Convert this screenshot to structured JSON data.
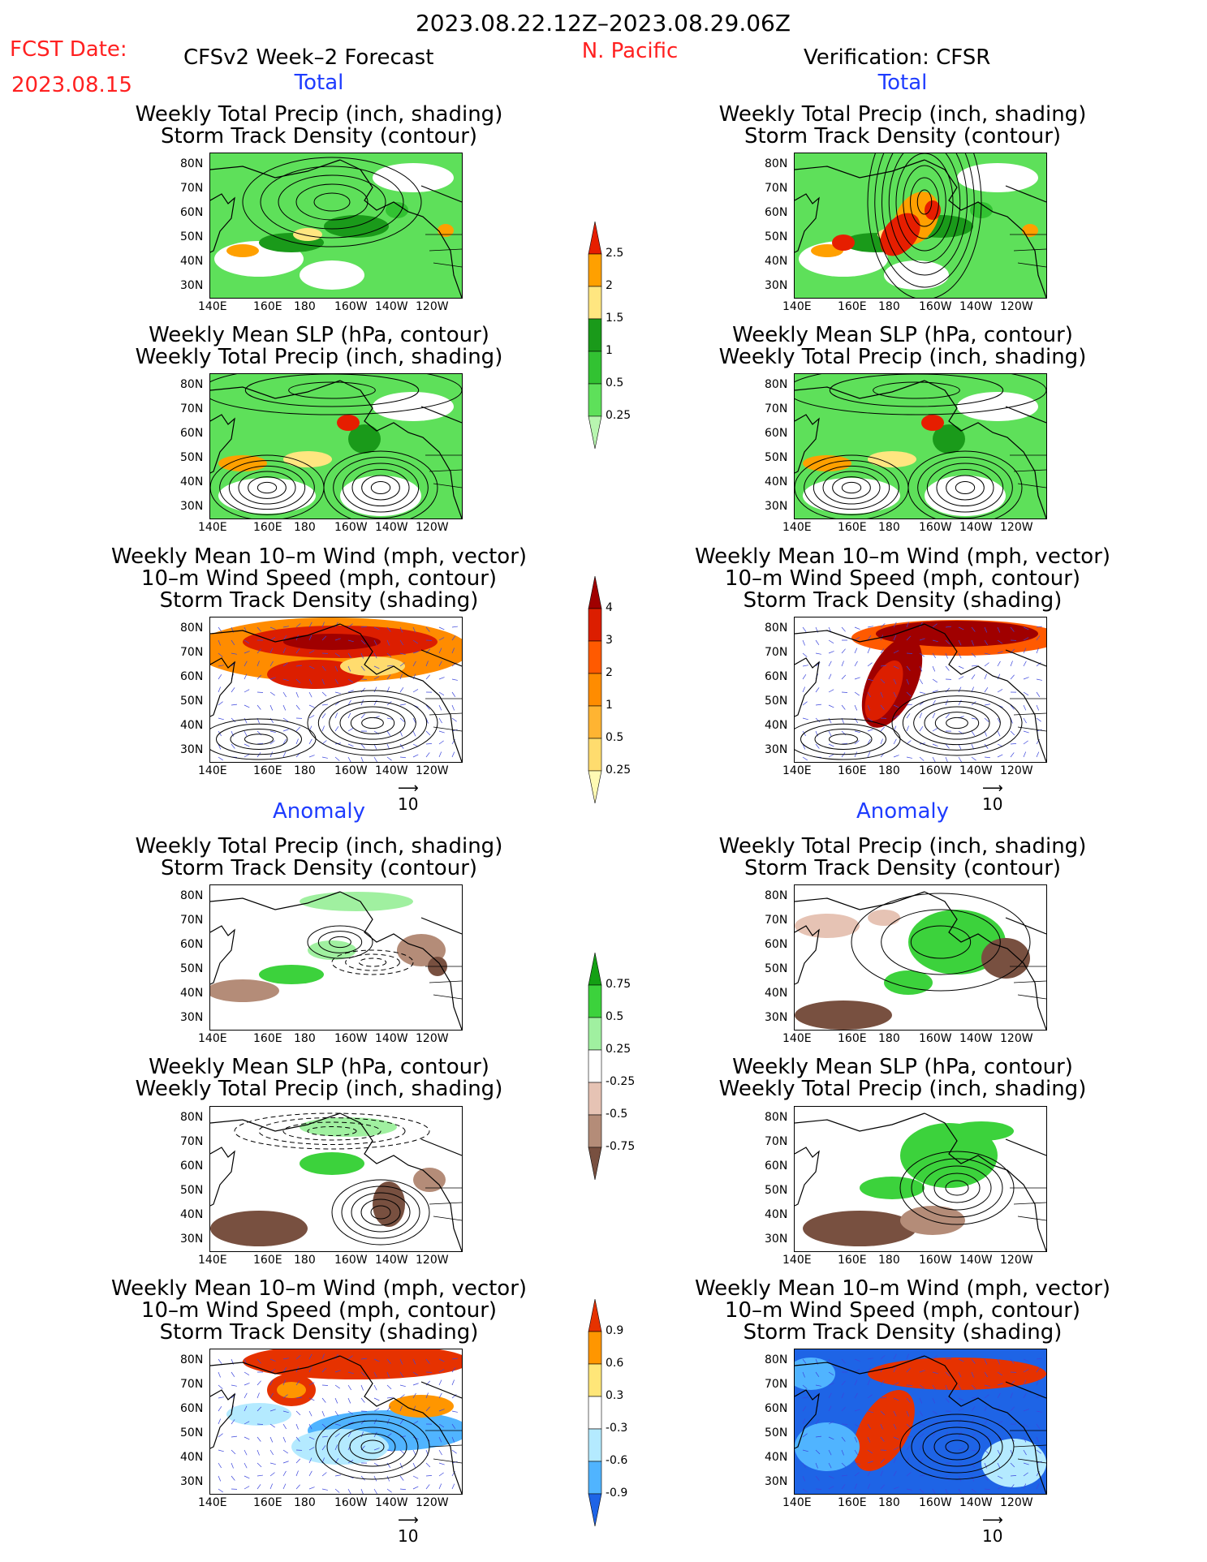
{
  "header": {
    "date_range": "2023.08.22.12Z–2023.08.29.06Z",
    "fcst_label": "FCST Date:",
    "fcst_date": "2023.08.15",
    "left_title": "CFSv2 Week–2 Forecast",
    "region": "N. Pacific",
    "right_title": "Verification: CFSR"
  },
  "sections": {
    "total": "Total",
    "anomaly": "Anomaly"
  },
  "panel_titles": {
    "precip_storm": [
      "Weekly Total Precip (inch, shading)",
      "Storm Track Density (contour)"
    ],
    "slp_precip": [
      "Weekly Mean SLP (hPa, contour)",
      "Weekly Total Precip (inch, shading)"
    ],
    "wind_storm": [
      "Weekly Mean 10–m Wind (mph, vector)",
      "10–m Wind Speed (mph, contour)",
      "Storm Track Density (shading)"
    ]
  },
  "axes": {
    "lat_ticks": [
      "80N",
      "70N",
      "60N",
      "50N",
      "40N",
      "30N"
    ],
    "lon_ticks": [
      "140E",
      "160E",
      "180",
      "160W",
      "140W",
      "120W"
    ]
  },
  "vector_ref": "10",
  "chart_data": [
    {
      "type": "heatmap",
      "name": "precip_total_colorbar",
      "levels": [
        "0.25",
        "0.5",
        "1",
        "1.5",
        "2",
        "2.5"
      ],
      "colors": [
        "#b8f5b0",
        "#5ee05a",
        "#32c232",
        "#1a9a1a",
        "#ffe680",
        "#ffa000",
        "#e61e00"
      ]
    },
    {
      "type": "heatmap",
      "name": "storm_total_colorbar",
      "levels": [
        "0.25",
        "0.5",
        "1",
        "2",
        "3",
        "4"
      ],
      "colors": [
        "#fffab4",
        "#ffdc6e",
        "#ffb432",
        "#ff8c00",
        "#ff5a00",
        "#dc1e00",
        "#a00000"
      ]
    },
    {
      "type": "heatmap",
      "name": "precip_anom_colorbar",
      "levels": [
        "0.75",
        "0.5",
        "0.25",
        "-0.25",
        "-0.5",
        "-0.75"
      ],
      "colors": [
        "#14a014",
        "#3cd23c",
        "#a0f0a0",
        "#ffffff",
        "#e6c3b4",
        "#b48c78",
        "#785040"
      ]
    },
    {
      "type": "heatmap",
      "name": "storm_anom_colorbar",
      "levels": [
        "0.9",
        "0.6",
        "0.3",
        "-0.3",
        "-0.6",
        "-0.9"
      ],
      "colors": [
        "#e63200",
        "#ff9600",
        "#ffe678",
        "#ffffff",
        "#b4eaff",
        "#50b4ff",
        "#1e64e6"
      ]
    }
  ]
}
